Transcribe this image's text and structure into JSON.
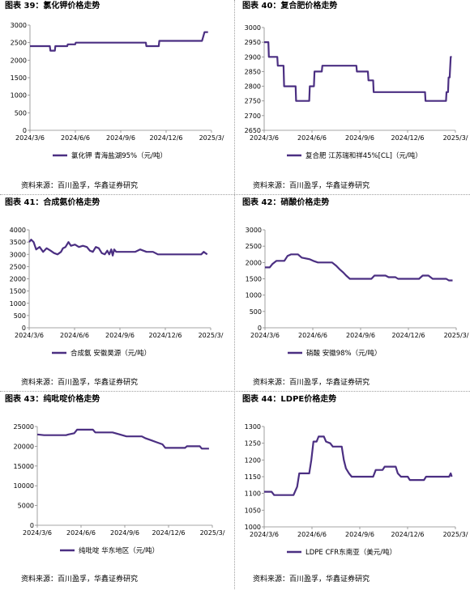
{
  "colors": {
    "line": "#4b2f82",
    "axis": "#888888",
    "separator": "#a0a0a0"
  },
  "panels": [
    {
      "title": "图表 39：氯化钾价格走势",
      "source": "资料来源：百川盈孚，华鑫证券研究",
      "chart_data": {
        "type": "line",
        "ylim": [
          0,
          3000
        ],
        "yticks": [
          "0",
          "500",
          "1000",
          "1500",
          "2000",
          "2500",
          "3000"
        ],
        "xticks": [
          "2024/3/6",
          "2024/6/6",
          "2024/9/6",
          "2024/12/6",
          "2025/3/"
        ],
        "series": [
          {
            "name": "氯化钾 青海盐湖95%（元/吨）",
            "points": [
              [
                "2024-03-06",
                2400
              ],
              [
                "2024-04-15",
                2400
              ],
              [
                "2024-04-16",
                2270
              ],
              [
                "2024-04-25",
                2270
              ],
              [
                "2024-04-26",
                2400
              ],
              [
                "2024-05-20",
                2400
              ],
              [
                "2024-05-21",
                2450
              ],
              [
                "2024-06-05",
                2450
              ],
              [
                "2024-06-06",
                2500
              ],
              [
                "2024-10-25",
                2500
              ],
              [
                "2024-10-26",
                2400
              ],
              [
                "2024-11-20",
                2400
              ],
              [
                "2024-11-21",
                2550
              ],
              [
                "2025-02-15",
                2550
              ],
              [
                "2025-02-20",
                2800
              ],
              [
                "2025-02-27",
                2800
              ]
            ]
          }
        ]
      }
    },
    {
      "title": "图表 40：复合肥价格走势",
      "source": "资料来源：百川盈孚，华鑫证券研究",
      "chart_data": {
        "type": "line",
        "ylim": [
          2650,
          3000
        ],
        "yticks": [
          "2650",
          "2700",
          "2750",
          "2800",
          "2850",
          "2900",
          "2950",
          "3000"
        ],
        "xticks": [
          "2024/3/6",
          "2024/6/6",
          "2024/9/6",
          "2024/12/6",
          "2025/3/"
        ],
        "series": [
          {
            "name": "复合肥 江苏瑞和祥45%[CL]（元/吨）",
            "points": [
              [
                "2024-03-06",
                2950
              ],
              [
                "2024-03-14",
                2950
              ],
              [
                "2024-03-15",
                2900
              ],
              [
                "2024-03-31",
                2900
              ],
              [
                "2024-04-01",
                2870
              ],
              [
                "2024-04-12",
                2870
              ],
              [
                "2024-04-13",
                2800
              ],
              [
                "2024-05-05",
                2800
              ],
              [
                "2024-05-06",
                2750
              ],
              [
                "2024-05-31",
                2750
              ],
              [
                "2024-06-01",
                2800
              ],
              [
                "2024-06-09",
                2800
              ],
              [
                "2024-06-10",
                2850
              ],
              [
                "2024-06-24",
                2850
              ],
              [
                "2024-06-25",
                2870
              ],
              [
                "2024-08-29",
                2870
              ],
              [
                "2024-08-30",
                2850
              ],
              [
                "2024-09-20",
                2850
              ],
              [
                "2024-09-21",
                2820
              ],
              [
                "2024-09-30",
                2820
              ],
              [
                "2024-10-01",
                2780
              ],
              [
                "2025-01-07",
                2780
              ],
              [
                "2025-01-08",
                2750
              ],
              [
                "2025-02-16",
                2750
              ],
              [
                "2025-02-17",
                2780
              ],
              [
                "2025-02-20",
                2780
              ],
              [
                "2025-02-21",
                2830
              ],
              [
                "2025-02-23",
                2830
              ],
              [
                "2025-02-25",
                2900
              ],
              [
                "2025-02-27",
                2900
              ]
            ]
          }
        ]
      }
    },
    {
      "title": "图表 41：合成氨价格走势",
      "source": "资料来源：百川盈孚，华鑫证券研究",
      "chart_data": {
        "type": "line",
        "ylim": [
          0,
          4000
        ],
        "yticks": [
          "0",
          "500",
          "1000",
          "1500",
          "2000",
          "2500",
          "3000",
          "3500",
          "4000"
        ],
        "xticks": [
          "2024/3/6",
          "2024/6/6",
          "2024/9/6",
          "2024/12/6",
          "2025/3/"
        ],
        "series": [
          {
            "name": "合成氨 安徽昊源（元/吨）",
            "points": [
              [
                "2024-03-06",
                3500
              ],
              [
                "2024-03-10",
                3600
              ],
              [
                "2024-03-15",
                3500
              ],
              [
                "2024-03-20",
                3200
              ],
              [
                "2024-03-27",
                3300
              ],
              [
                "2024-04-03",
                3100
              ],
              [
                "2024-04-10",
                3250
              ],
              [
                "2024-04-18",
                3150
              ],
              [
                "2024-04-25",
                3050
              ],
              [
                "2024-05-02",
                3000
              ],
              [
                "2024-05-09",
                3100
              ],
              [
                "2024-05-13",
                3250
              ],
              [
                "2024-05-18",
                3300
              ],
              [
                "2024-05-24",
                3500
              ],
              [
                "2024-05-29",
                3350
              ],
              [
                "2024-06-06",
                3400
              ],
              [
                "2024-06-14",
                3300
              ],
              [
                "2024-06-22",
                3350
              ],
              [
                "2024-06-30",
                3300
              ],
              [
                "2024-07-06",
                3150
              ],
              [
                "2024-07-12",
                3100
              ],
              [
                "2024-07-18",
                3300
              ],
              [
                "2024-07-24",
                3250
              ],
              [
                "2024-07-30",
                3050
              ],
              [
                "2024-08-05",
                3000
              ],
              [
                "2024-08-10",
                3150
              ],
              [
                "2024-08-14",
                3000
              ],
              [
                "2024-08-18",
                3200
              ],
              [
                "2024-08-21",
                2950
              ],
              [
                "2024-08-24",
                3200
              ],
              [
                "2024-08-28",
                3100
              ],
              [
                "2024-09-04",
                3100
              ],
              [
                "2024-09-20",
                3100
              ],
              [
                "2024-10-05",
                3100
              ],
              [
                "2024-10-15",
                3200
              ],
              [
                "2024-10-28",
                3100
              ],
              [
                "2024-11-10",
                3100
              ],
              [
                "2024-11-20",
                3000
              ],
              [
                "2024-12-15",
                3000
              ],
              [
                "2025-01-20",
                3000
              ],
              [
                "2025-02-15",
                3000
              ],
              [
                "2025-02-20",
                3100
              ],
              [
                "2025-02-27",
                3000
              ]
            ]
          }
        ]
      }
    },
    {
      "title": "图表 42：硝酸价格走势",
      "source": "资料来源：百川盈孚，华鑫证券研究",
      "chart_data": {
        "type": "line",
        "ylim": [
          0,
          3000
        ],
        "yticks": [
          "0",
          "500",
          "1000",
          "1500",
          "2000",
          "2500",
          "3000"
        ],
        "xticks": [
          "2024/3/6",
          "2024/6/6",
          "2024/9/6",
          "2024/12/6",
          "2025/3/"
        ],
        "series": [
          {
            "name": "硝酸 安徽98%（元/吨）",
            "points": [
              [
                "2024-03-06",
                1850
              ],
              [
                "2024-03-15",
                1850
              ],
              [
                "2024-03-20",
                1950
              ],
              [
                "2024-03-28",
                2050
              ],
              [
                "2024-04-12",
                2050
              ],
              [
                "2024-04-18",
                2200
              ],
              [
                "2024-04-25",
                2250
              ],
              [
                "2024-05-08",
                2250
              ],
              [
                "2024-05-15",
                2150
              ],
              [
                "2024-05-30",
                2100
              ],
              [
                "2024-06-06",
                2050
              ],
              [
                "2024-06-15",
                2000
              ],
              [
                "2024-07-12",
                2000
              ],
              [
                "2024-07-20",
                1900
              ],
              [
                "2024-07-26",
                1800
              ],
              [
                "2024-08-02",
                1700
              ],
              [
                "2024-08-08",
                1600
              ],
              [
                "2024-08-15",
                1500
              ],
              [
                "2024-09-25",
                1500
              ],
              [
                "2024-10-01",
                1600
              ],
              [
                "2024-10-22",
                1600
              ],
              [
                "2024-10-28",
                1550
              ],
              [
                "2024-11-10",
                1550
              ],
              [
                "2024-11-15",
                1500
              ],
              [
                "2024-12-25",
                1500
              ],
              [
                "2025-01-01",
                1600
              ],
              [
                "2025-01-12",
                1600
              ],
              [
                "2025-01-20",
                1500
              ],
              [
                "2025-02-15",
                1500
              ],
              [
                "2025-02-20",
                1450
              ],
              [
                "2025-02-27",
                1450
              ]
            ]
          }
        ]
      }
    },
    {
      "title": "图表 43：纯吡啶价格走势",
      "source": "资料来源：百川盈孚，华鑫证券研究",
      "chart_data": {
        "type": "line",
        "ylim": [
          0,
          25000
        ],
        "yticks": [
          "0",
          "5000",
          "10000",
          "15000",
          "20000",
          "25000"
        ],
        "xticks": [
          "2024/3/6",
          "2024/6/6",
          "2024/9/6",
          "2024/12/6",
          "2025/3/"
        ],
        "series": [
          {
            "name": "纯吡啶 华东地区（元/吨）",
            "points": [
              [
                "2024-03-06",
                23000
              ],
              [
                "2024-03-20",
                22800
              ],
              [
                "2024-05-05",
                22800
              ],
              [
                "2024-05-10",
                23000
              ],
              [
                "2024-05-22",
                23300
              ],
              [
                "2024-05-28",
                24200
              ],
              [
                "2024-06-15",
                24200
              ],
              [
                "2024-06-30",
                24200
              ],
              [
                "2024-07-05",
                23500
              ],
              [
                "2024-08-10",
                23500
              ],
              [
                "2024-08-25",
                23000
              ],
              [
                "2024-09-08",
                22500
              ],
              [
                "2024-10-10",
                22500
              ],
              [
                "2024-10-18",
                22000
              ],
              [
                "2024-10-30",
                21500
              ],
              [
                "2024-11-10",
                21000
              ],
              [
                "2024-11-22",
                20500
              ],
              [
                "2024-11-28",
                19600
              ],
              [
                "2025-01-08",
                19600
              ],
              [
                "2025-01-12",
                20000
              ],
              [
                "2025-02-08",
                20000
              ],
              [
                "2025-02-12",
                19400
              ],
              [
                "2025-02-27",
                19400
              ]
            ]
          }
        ]
      }
    },
    {
      "title": "图表 44：LDPE价格走势",
      "source": "资料来源：百川盈孚，华鑫证券研究",
      "chart_data": {
        "type": "line",
        "ylim": [
          1000,
          1300
        ],
        "yticks": [
          "1000",
          "1050",
          "1100",
          "1150",
          "1200",
          "1250",
          "1300"
        ],
        "xticks": [
          "2024/3/6",
          "2024/6/6",
          "2024/9/6",
          "2024/12/6",
          "2025/3/"
        ],
        "series": [
          {
            "name": "LDPE CFR东南亚（美元/吨）",
            "points": [
              [
                "2024-03-06",
                1105
              ],
              [
                "2024-03-20",
                1105
              ],
              [
                "2024-03-25",
                1095
              ],
              [
                "2024-05-01",
                1095
              ],
              [
                "2024-05-08",
                1120
              ],
              [
                "2024-05-12",
                1160
              ],
              [
                "2024-05-31",
                1160
              ],
              [
                "2024-06-04",
                1200
              ],
              [
                "2024-06-08",
                1255
              ],
              [
                "2024-06-14",
                1255
              ],
              [
                "2024-06-18",
                1270
              ],
              [
                "2024-06-28",
                1270
              ],
              [
                "2024-07-02",
                1255
              ],
              [
                "2024-07-10",
                1250
              ],
              [
                "2024-07-15",
                1240
              ],
              [
                "2024-08-01",
                1240
              ],
              [
                "2024-08-05",
                1200
              ],
              [
                "2024-08-09",
                1175
              ],
              [
                "2024-08-15",
                1160
              ],
              [
                "2024-08-20",
                1150
              ],
              [
                "2024-09-30",
                1150
              ],
              [
                "2024-10-05",
                1170
              ],
              [
                "2024-10-18",
                1170
              ],
              [
                "2024-10-22",
                1180
              ],
              [
                "2024-11-12",
                1180
              ],
              [
                "2024-11-16",
                1160
              ],
              [
                "2024-11-22",
                1150
              ],
              [
                "2024-12-05",
                1150
              ],
              [
                "2024-12-09",
                1140
              ],
              [
                "2025-01-05",
                1140
              ],
              [
                "2025-01-09",
                1150
              ],
              [
                "2025-02-22",
                1150
              ],
              [
                "2025-02-25",
                1160
              ],
              [
                "2025-02-27",
                1150
              ]
            ]
          }
        ]
      }
    }
  ]
}
